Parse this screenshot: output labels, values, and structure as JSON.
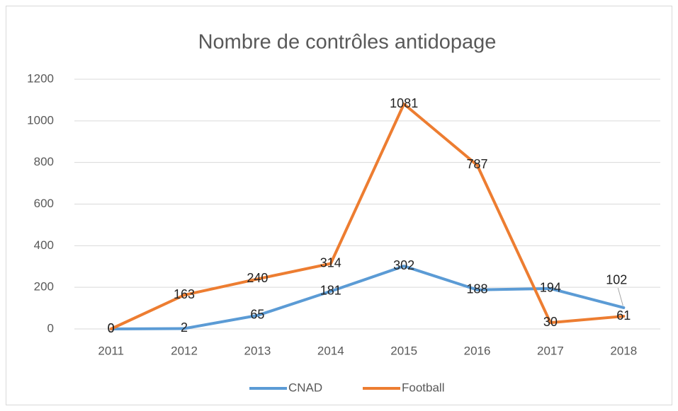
{
  "chart_data": {
    "type": "line",
    "title": "Nombre de contrôles antidopage",
    "categories": [
      "2011",
      "2012",
      "2013",
      "2014",
      "2015",
      "2016",
      "2017",
      "2018"
    ],
    "series": [
      {
        "name": "CNAD",
        "color": "#5b9bd5",
        "values": [
          0,
          2,
          65,
          181,
          302,
          188,
          194,
          102
        ]
      },
      {
        "name": "Football",
        "color": "#ed7d31",
        "values": [
          0,
          163,
          240,
          314,
          1081,
          787,
          30,
          61
        ]
      }
    ],
    "ylim": [
      0,
      1200
    ],
    "yticks": [
      0,
      200,
      400,
      600,
      800,
      1000,
      1200
    ],
    "grid": true,
    "legend": "bottom"
  }
}
